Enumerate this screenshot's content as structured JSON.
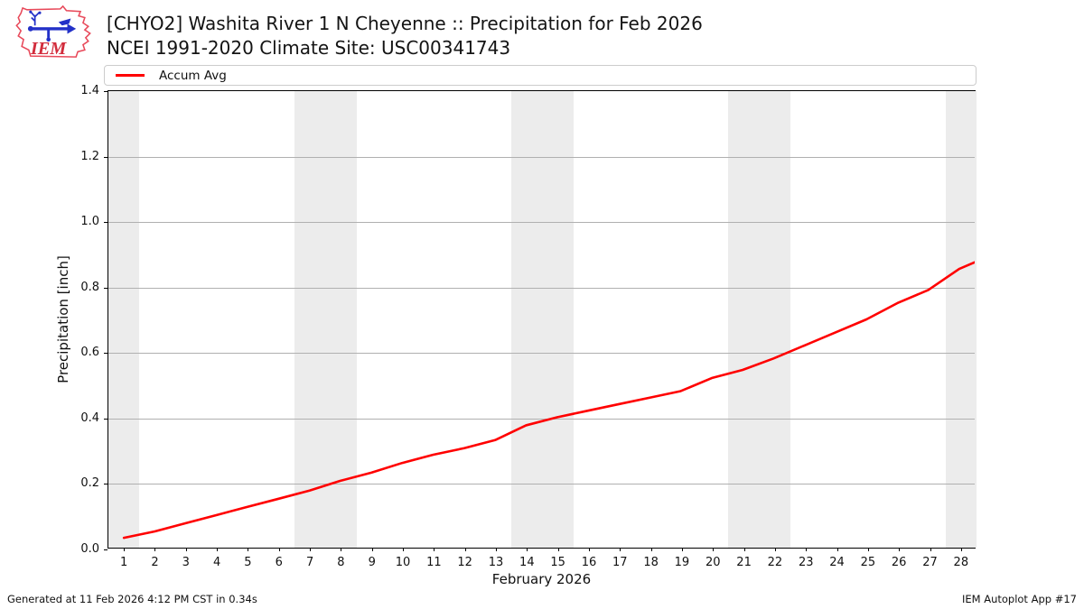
{
  "header": {
    "title_line1": "[CHYO2] Washita River 1 N Cheyenne :: Precipitation for Feb 2026",
    "title_line2": "NCEI 1991-2020 Climate Site: USC00341743",
    "logo_text": "IEM"
  },
  "chart_data": {
    "type": "line",
    "title": "[CHYO2] Washita River 1 N Cheyenne :: Precipitation for Feb 2026",
    "subtitle": "NCEI 1991-2020 Climate Site: USC00341743",
    "xlabel": "February 2026",
    "ylabel": "Precipitation [inch]",
    "xlim": [
      0.5,
      28.5
    ],
    "ylim": [
      0,
      1.4
    ],
    "xticks": [
      1,
      2,
      3,
      4,
      5,
      6,
      7,
      8,
      9,
      10,
      11,
      12,
      13,
      14,
      15,
      16,
      17,
      18,
      19,
      20,
      21,
      22,
      23,
      24,
      25,
      26,
      27,
      28
    ],
    "yticks": [
      0.0,
      0.2,
      0.4,
      0.6,
      0.8,
      1.0,
      1.2,
      1.4
    ],
    "ytick_labels": [
      "0.0",
      "0.2",
      "0.4",
      "0.6",
      "0.8",
      "1.0",
      "1.2",
      "1.4"
    ],
    "grid": "horizontal",
    "legend_position": "top full-width",
    "weekend_shading": [
      [
        0.5,
        1.5
      ],
      [
        6.5,
        8.5
      ],
      [
        13.5,
        15.5
      ],
      [
        20.5,
        22.5
      ],
      [
        27.5,
        28.5
      ]
    ],
    "series": [
      {
        "name": "Accum Avg",
        "color": "#ff0000",
        "x": [
          1,
          2,
          3,
          4,
          5,
          6,
          7,
          8,
          9,
          10,
          11,
          12,
          13,
          14,
          15,
          16,
          17,
          18,
          19,
          20,
          21,
          22,
          23,
          24,
          25,
          26,
          27,
          28,
          28.5
        ],
        "values": [
          0.03,
          0.05,
          0.075,
          0.1,
          0.125,
          0.15,
          0.175,
          0.205,
          0.23,
          0.26,
          0.285,
          0.305,
          0.33,
          0.375,
          0.4,
          0.42,
          0.44,
          0.46,
          0.48,
          0.52,
          0.545,
          0.58,
          0.62,
          0.66,
          0.7,
          0.75,
          0.79,
          0.855,
          0.875
        ]
      }
    ],
    "colors": {
      "band": "#ececec",
      "grid": "#b0b0b0",
      "spine": "#000000"
    }
  },
  "footer": {
    "left": "Generated at 11 Feb 2026 4:12 PM CST in 0.34s",
    "right": "IEM Autoplot App #17"
  }
}
